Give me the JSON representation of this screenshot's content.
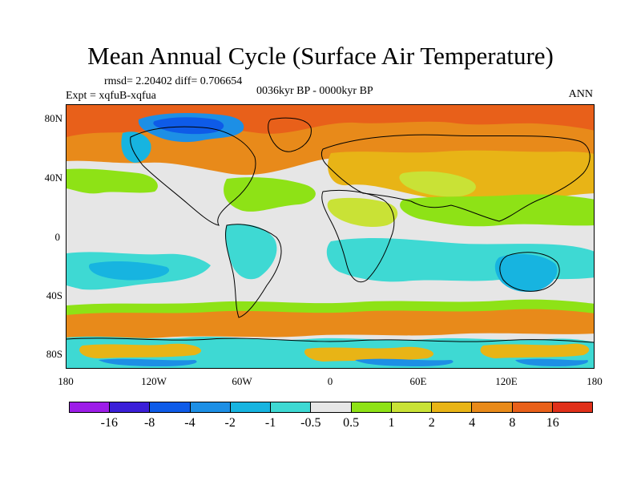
{
  "figure": {
    "title": "Mean Annual Cycle (Surface Air Temperature)",
    "stats": "rmsd= 2.20402 diff= 0.706654",
    "experiment": "Expt = xqfuB-xqfua",
    "period": "0036kyr BP - 0000kyr BP",
    "season": "ANN"
  },
  "axes": {
    "lat_labels": [
      "80N",
      "40N",
      "0",
      "40S",
      "80S"
    ],
    "lon_labels": [
      "180",
      "120W",
      "60W",
      "0",
      "60E",
      "120E",
      "180"
    ]
  },
  "colorbar": {
    "labels": [
      "-16",
      "-8",
      "-4",
      "-2",
      "-1",
      "-0.5",
      "0.5",
      "1",
      "2",
      "4",
      "8",
      "16"
    ],
    "colors": [
      "#9d1de8",
      "#3b1fd8",
      "#0e5be8",
      "#1d8fe5",
      "#17b4e0",
      "#3ed9d3",
      "#e6e6e6",
      "#8ee216",
      "#c9e236",
      "#e8b416",
      "#e88a1a",
      "#e8601a",
      "#e0301a"
    ]
  },
  "map_colors": {
    "ocean_neutral": "#e6e6e6",
    "cyan": "#3ed9d3",
    "light_blue": "#17b4e0",
    "blue": "#1d8fe5",
    "dark_blue": "#0e5be8",
    "green": "#8ee216",
    "yellow_green": "#c9e236",
    "yellow": "#e8b416",
    "orange": "#e88a1a",
    "dark_orange": "#e8601a",
    "coast": "#000000"
  }
}
